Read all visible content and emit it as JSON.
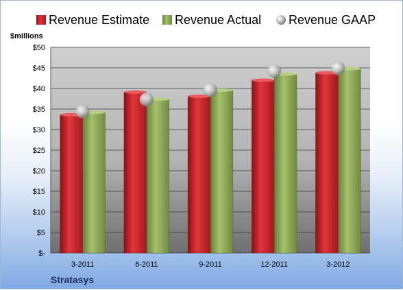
{
  "chart_data": {
    "type": "bar",
    "ylabel": "$millions",
    "ylim": [
      0,
      50
    ],
    "yticks": [
      "$-",
      "$5",
      "$10",
      "$15",
      "$20",
      "$25",
      "$30",
      "$35",
      "$40",
      "$45",
      "$50"
    ],
    "categories": [
      "3-2011",
      "6-2011",
      "9-2011",
      "12-2011",
      "3-2012"
    ],
    "series": [
      {
        "name": "Revenue Estimate",
        "kind": "bar",
        "color": "#c8262c",
        "values": [
          33.6,
          39.1,
          38.1,
          42.0,
          43.8
        ]
      },
      {
        "name": "Revenue Actual",
        "kind": "bar",
        "color": "#8fa75a",
        "values": [
          34.2,
          37.4,
          39.6,
          43.5,
          44.8
        ]
      },
      {
        "name": "Revenue GAAP",
        "kind": "marker",
        "color": "#b8b8b8",
        "values": [
          34.4,
          37.3,
          39.6,
          44.2,
          44.9
        ]
      }
    ],
    "legend": "top",
    "grid": true,
    "footer": "Stratasys"
  }
}
